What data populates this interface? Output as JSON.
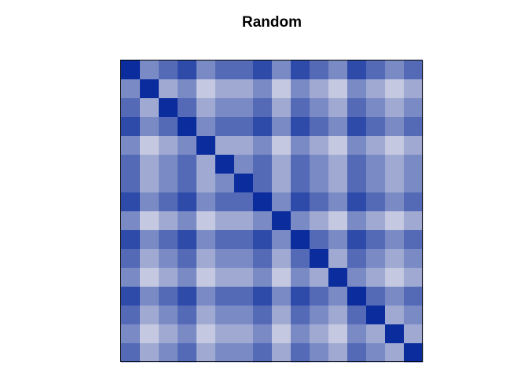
{
  "chart_data": {
    "type": "heatmap",
    "title": "Random",
    "zlim": [
      0,
      5
    ],
    "colors": [
      "#c4c8e0",
      "#0a2c9c"
    ],
    "values": [
      [
        5,
        2,
        3,
        4,
        2,
        3,
        3,
        4,
        2,
        4,
        3,
        2,
        4,
        3,
        2,
        3
      ],
      [
        2,
        5,
        1,
        2,
        0,
        1,
        1,
        2,
        0,
        2,
        1,
        0,
        2,
        1,
        0,
        1
      ],
      [
        3,
        1,
        5,
        3,
        1,
        2,
        2,
        3,
        1,
        3,
        2,
        1,
        3,
        2,
        1,
        2
      ],
      [
        4,
        2,
        3,
        5,
        2,
        3,
        3,
        4,
        2,
        4,
        3,
        2,
        4,
        3,
        2,
        3
      ],
      [
        2,
        0,
        1,
        2,
        5,
        1,
        1,
        2,
        0,
        2,
        1,
        0,
        2,
        1,
        0,
        1
      ],
      [
        3,
        1,
        2,
        3,
        1,
        5,
        2,
        3,
        1,
        3,
        2,
        1,
        3,
        2,
        1,
        2
      ],
      [
        3,
        1,
        2,
        3,
        1,
        2,
        5,
        3,
        1,
        3,
        2,
        1,
        3,
        2,
        1,
        2
      ],
      [
        4,
        2,
        3,
        4,
        2,
        3,
        3,
        5,
        2,
        4,
        3,
        2,
        4,
        3,
        2,
        3
      ],
      [
        2,
        0,
        1,
        2,
        0,
        1,
        1,
        2,
        5,
        2,
        1,
        0,
        2,
        1,
        0,
        1
      ],
      [
        4,
        2,
        3,
        4,
        2,
        3,
        3,
        4,
        2,
        5,
        3,
        2,
        4,
        3,
        2,
        3
      ],
      [
        3,
        1,
        2,
        3,
        1,
        2,
        2,
        3,
        1,
        3,
        5,
        1,
        3,
        2,
        1,
        2
      ],
      [
        2,
        0,
        1,
        2,
        0,
        1,
        1,
        2,
        0,
        2,
        1,
        5,
        2,
        1,
        0,
        1
      ],
      [
        4,
        2,
        3,
        4,
        2,
        3,
        3,
        4,
        2,
        4,
        3,
        2,
        5,
        3,
        2,
        3
      ],
      [
        3,
        1,
        2,
        3,
        1,
        2,
        2,
        3,
        1,
        3,
        2,
        1,
        3,
        5,
        1,
        2
      ],
      [
        2,
        0,
        1,
        2,
        0,
        1,
        1,
        2,
        0,
        2,
        1,
        0,
        2,
        1,
        5,
        1
      ],
      [
        3,
        1,
        2,
        3,
        1,
        2,
        2,
        3,
        1,
        3,
        2,
        1,
        3,
        2,
        1,
        5
      ]
    ]
  }
}
